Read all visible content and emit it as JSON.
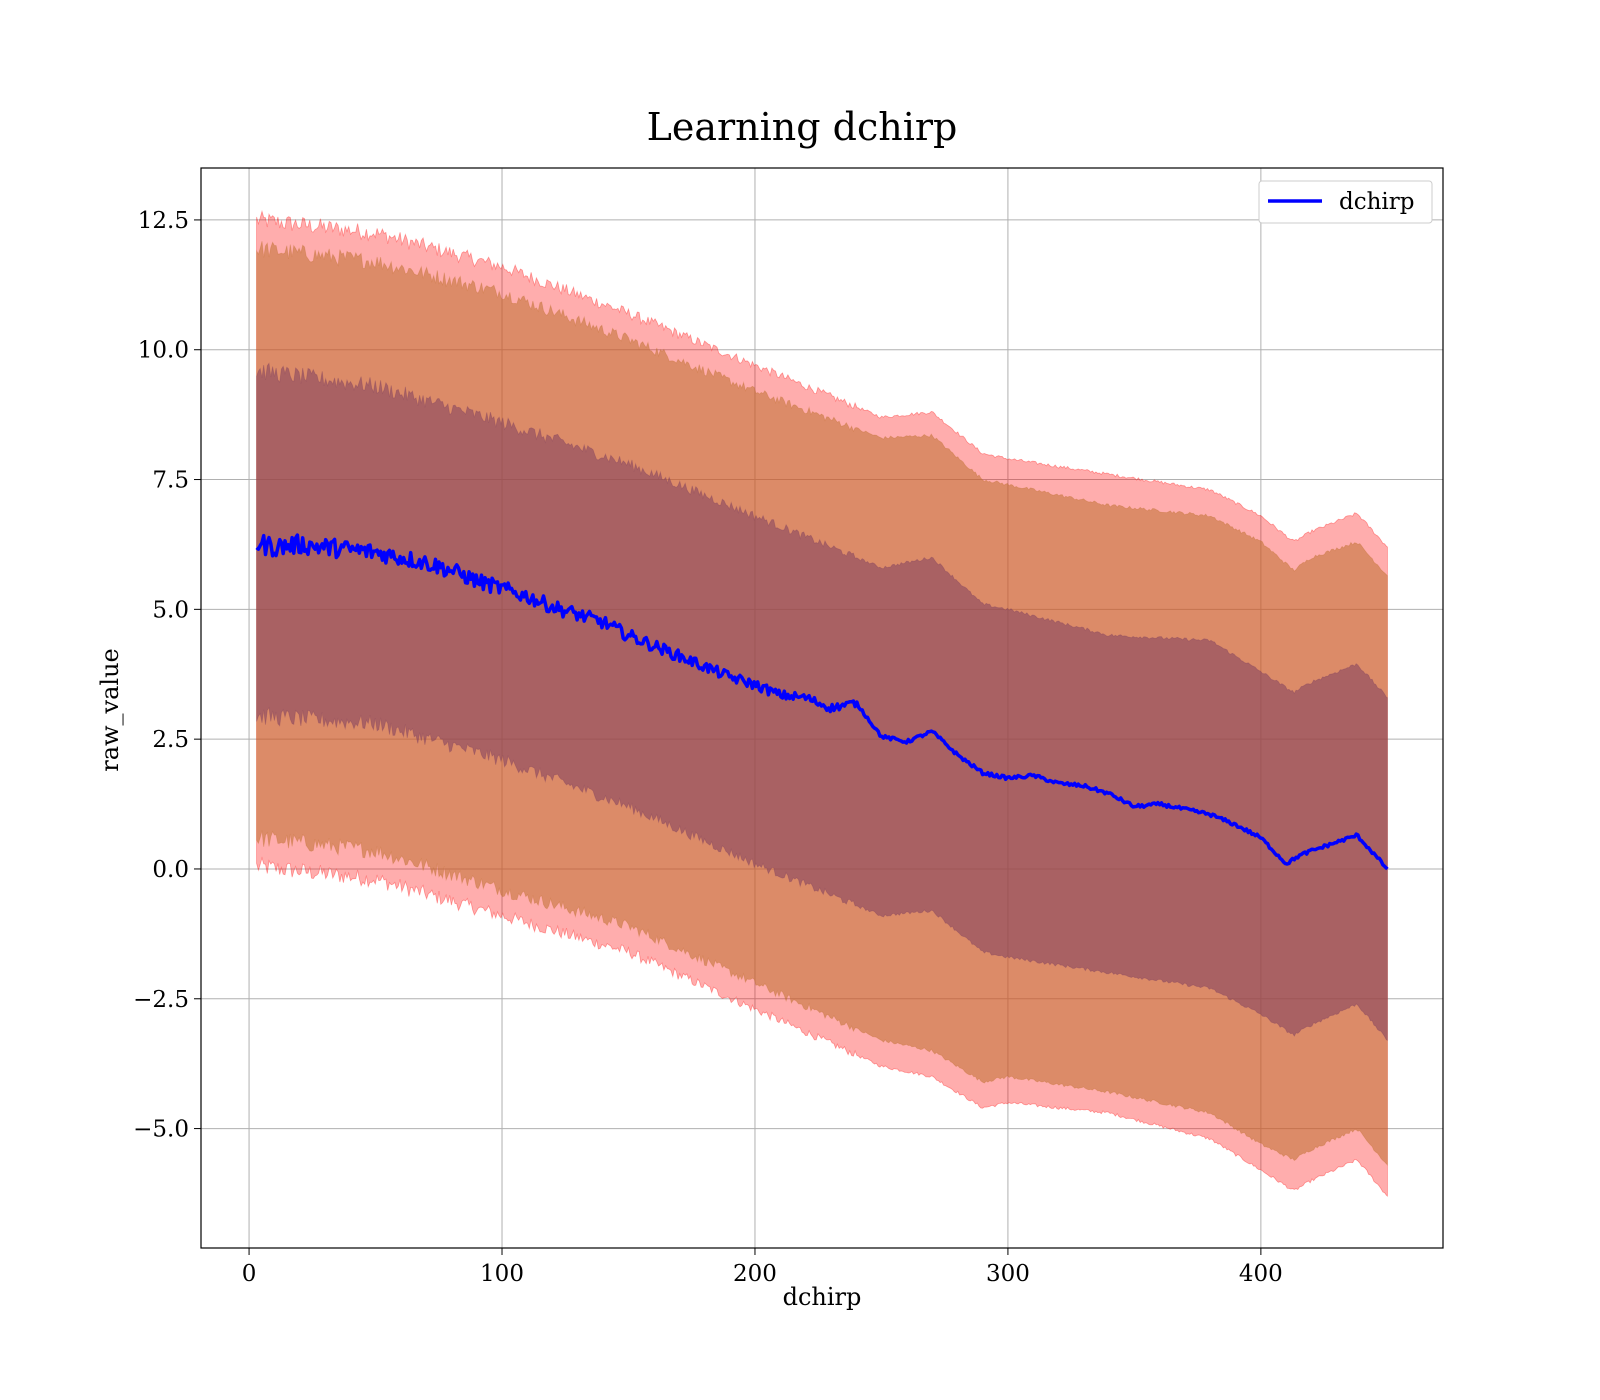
{
  "chart_data": {
    "type": "line",
    "title": "Learning dchirp",
    "xlabel": "dchirp",
    "ylabel": "raw_value",
    "xlim": [
      -19,
      472
    ],
    "ylim": [
      -7.3,
      13.5
    ],
    "grid": true,
    "legend_position": "top-right",
    "x_ticks": [
      0,
      100,
      200,
      300,
      400
    ],
    "x_tick_labels": [
      "0",
      "100",
      "200",
      "300",
      "400"
    ],
    "y_ticks": [
      -5.0,
      -2.5,
      0.0,
      2.5,
      5.0,
      7.5,
      10.0,
      12.5
    ],
    "y_tick_labels": [
      "−5.0",
      "−2.5",
      "0.0",
      "2.5",
      "5.0",
      "7.5",
      "10.0",
      "12.5"
    ],
    "colors": {
      "line": "#0000ff",
      "band_outer": "#ff0000",
      "band_middle": "#bf6f2f",
      "band_inner": "#7f3f5f"
    },
    "series": [
      {
        "name": "dchirp",
        "x": [
          3,
          10,
          20,
          30,
          40,
          50,
          60,
          70,
          80,
          90,
          100,
          110,
          120,
          130,
          140,
          150,
          160,
          170,
          180,
          190,
          200,
          210,
          220,
          230,
          240,
          250,
          260,
          270,
          280,
          290,
          300,
          310,
          320,
          330,
          340,
          350,
          360,
          370,
          380,
          390,
          400,
          410,
          415,
          420,
          438,
          450
        ],
        "y": [
          6.28,
          6.2,
          6.25,
          6.2,
          6.15,
          6.1,
          6.0,
          5.9,
          5.75,
          5.55,
          5.4,
          5.25,
          5.05,
          4.9,
          4.75,
          4.5,
          4.3,
          4.1,
          3.9,
          3.7,
          3.55,
          3.35,
          3.3,
          3.1,
          3.2,
          2.55,
          2.45,
          2.65,
          2.2,
          1.85,
          1.75,
          1.8,
          1.65,
          1.6,
          1.45,
          1.2,
          1.25,
          1.15,
          1.05,
          0.85,
          0.6,
          0.1,
          0.25,
          0.35,
          0.65,
          0.0
        ]
      }
    ],
    "bands": [
      {
        "level": "outer",
        "x": [
          3,
          50,
          100,
          150,
          200,
          250,
          270,
          290,
          300,
          340,
          380,
          400,
          413,
          420,
          438,
          450
        ],
        "upper": [
          12.5,
          12.25,
          11.6,
          10.7,
          9.7,
          8.7,
          8.8,
          8.0,
          7.9,
          7.6,
          7.3,
          6.8,
          6.3,
          6.5,
          6.85,
          6.2
        ],
        "lower": [
          0.05,
          -0.2,
          -0.9,
          -1.6,
          -2.7,
          -3.8,
          -4.0,
          -4.6,
          -4.5,
          -4.7,
          -5.2,
          -5.8,
          -6.2,
          -6.0,
          -5.6,
          -6.3
        ]
      },
      {
        "level": "middle",
        "x": [
          3,
          50,
          100,
          150,
          200,
          250,
          270,
          290,
          300,
          340,
          380,
          400,
          413,
          420,
          438,
          450
        ],
        "upper": [
          11.95,
          11.7,
          11.1,
          10.2,
          9.2,
          8.3,
          8.35,
          7.5,
          7.4,
          7.0,
          6.8,
          6.3,
          5.75,
          6.0,
          6.3,
          5.65
        ],
        "lower": [
          0.6,
          0.35,
          -0.4,
          -1.1,
          -2.2,
          -3.3,
          -3.5,
          -4.1,
          -4.0,
          -4.3,
          -4.7,
          -5.3,
          -5.6,
          -5.4,
          -5.0,
          -5.7
        ]
      },
      {
        "level": "inner",
        "x": [
          3,
          50,
          100,
          150,
          200,
          250,
          270,
          290,
          300,
          340,
          380,
          400,
          413,
          420,
          438,
          450
        ],
        "upper": [
          9.6,
          9.3,
          8.6,
          7.8,
          6.8,
          5.8,
          6.0,
          5.1,
          5.0,
          4.5,
          4.4,
          3.8,
          3.4,
          3.6,
          3.95,
          3.3
        ],
        "lower": [
          2.95,
          2.8,
          2.1,
          1.2,
          0.1,
          -0.9,
          -0.8,
          -1.6,
          -1.7,
          -2.0,
          -2.3,
          -2.8,
          -3.2,
          -3.0,
          -2.6,
          -3.3
        ]
      }
    ]
  }
}
